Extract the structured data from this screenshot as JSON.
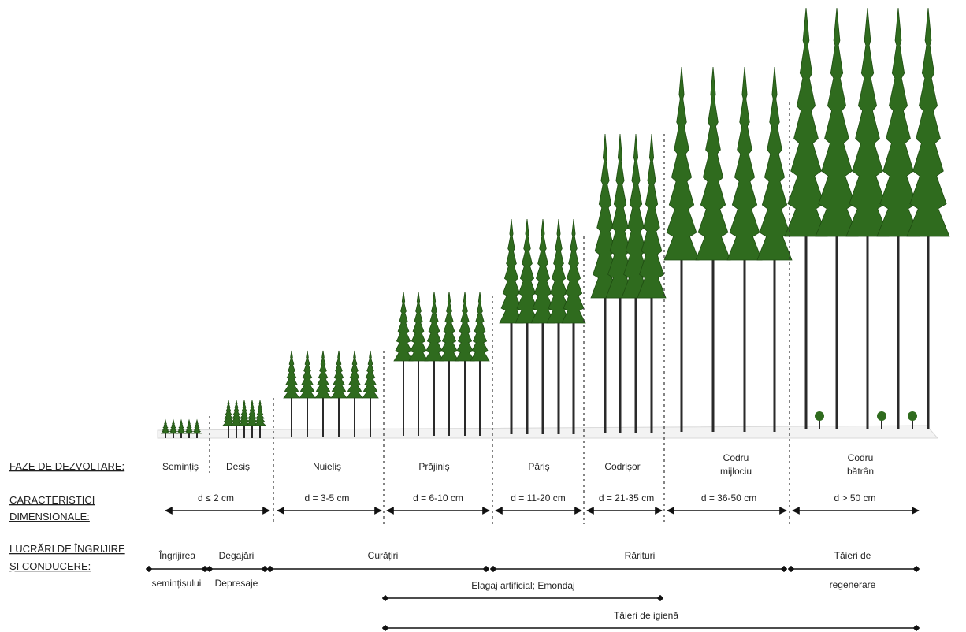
{
  "row_labels": {
    "phases": "FAZE DE DEZVOLTARE:",
    "dimensional_1": "CARACTERISTICI",
    "dimensional_2": "DIMENSIONALE:",
    "works_1": "LUCRĂRI DE ÎNGRIJIRE",
    "works_2": "ȘI CONDUCERE:"
  },
  "phases": [
    {
      "name_1": "Semințiș",
      "name_2": ""
    },
    {
      "name_1": "Desiș",
      "name_2": ""
    },
    {
      "name_1": "Nuieliș",
      "name_2": ""
    },
    {
      "name_1": "Prăjiniș",
      "name_2": ""
    },
    {
      "name_1": "Păriș",
      "name_2": ""
    },
    {
      "name_1": "Codrișor",
      "name_2": ""
    },
    {
      "name_1": "Codru",
      "name_2": "mijlociu"
    },
    {
      "name_1": "Codru",
      "name_2": "bătrân"
    }
  ],
  "diameters": [
    "d ≤ 2 cm",
    "d = 3-5 cm",
    "d = 6-10 cm",
    "d = 11-20 cm",
    "d = 21-35 cm",
    "d = 36-50 cm",
    "d > 50 cm"
  ],
  "works": {
    "ingrijire_1": "Îngrijirea",
    "ingrijire_2": "semințișului",
    "degajari": "Degajări",
    "depresaje": "Depresaje",
    "curatiri": "Curățiri",
    "rarituri": "Rărituri",
    "taieri_regen_1": "Tăieri de",
    "taieri_regen_2": "regenerare",
    "elagaj": "Elagaj artificial; Emondaj",
    "igiena": "Tăieri de igienă"
  },
  "colors": {
    "foliage": "#2f6b1e",
    "foliage_dark": "#1f4d12",
    "trunk": "#2a2a2a",
    "line": "#111111"
  }
}
